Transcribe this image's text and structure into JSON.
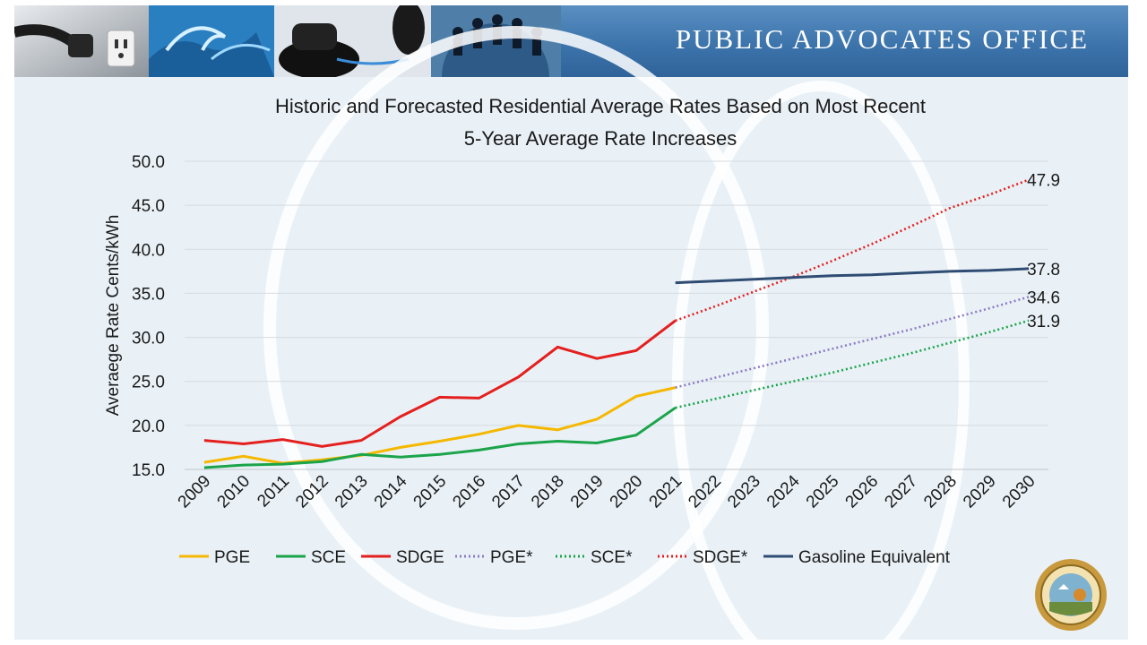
{
  "header": {
    "title": "PUBLIC ADVOCATES OFFICE",
    "photos": [
      "plug-outlet-icon",
      "water-wave-icon",
      "telephone-icon",
      "globe-people-icon"
    ]
  },
  "chart_data": {
    "type": "line",
    "title_lines": [
      "Historic and Forecasted Residential Average Rates Based on Most Recent",
      "5-Year Average Rate Increases"
    ],
    "ylabel": "Averaege Rate Cents/kWh",
    "xlabel": "",
    "ylim": [
      15,
      50
    ],
    "yticks": [
      "15.0",
      "20.0",
      "25.0",
      "30.0",
      "35.0",
      "40.0",
      "45.0",
      "50.0"
    ],
    "x": [
      "2009",
      "2010",
      "2011",
      "2012",
      "2013",
      "2014",
      "2015",
      "2016",
      "2017",
      "2018",
      "2019",
      "2020",
      "2021",
      "2022",
      "2023",
      "2024",
      "2025",
      "2026",
      "2027",
      "2028",
      "2029",
      "2030"
    ],
    "grid": true,
    "legend_position": "bottom",
    "series": [
      {
        "name": "PGE",
        "color": "#f5b800",
        "style": "solid",
        "values": [
          15.8,
          16.5,
          15.7,
          16.1,
          16.6,
          17.5,
          18.2,
          19.0,
          20.0,
          19.5,
          20.7,
          23.3,
          24.3,
          null,
          null,
          null,
          null,
          null,
          null,
          null,
          null,
          null
        ]
      },
      {
        "name": "SCE",
        "color": "#1ba44a",
        "style": "solid",
        "values": [
          15.2,
          15.5,
          15.6,
          15.9,
          16.7,
          16.4,
          16.7,
          17.2,
          17.9,
          18.2,
          18.0,
          18.9,
          22.0,
          null,
          null,
          null,
          null,
          null,
          null,
          null,
          null,
          null
        ]
      },
      {
        "name": "SDGE",
        "color": "#e4201f",
        "style": "solid",
        "values": [
          18.3,
          17.9,
          18.4,
          17.6,
          18.3,
          21.0,
          23.2,
          23.1,
          25.5,
          28.9,
          27.6,
          28.5,
          31.9,
          null,
          null,
          null,
          null,
          null,
          null,
          null,
          null,
          null
        ]
      },
      {
        "name": "PGE*",
        "color": "#8e7cc3",
        "style": "dotted",
        "values": [
          null,
          null,
          null,
          null,
          null,
          null,
          null,
          null,
          null,
          null,
          null,
          null,
          24.3,
          25.4,
          26.5,
          27.6,
          28.7,
          29.8,
          30.9,
          32.1,
          33.3,
          34.6
        ],
        "end_label": "34.6"
      },
      {
        "name": "SCE*",
        "color": "#1ba44a",
        "style": "dotted",
        "values": [
          null,
          null,
          null,
          null,
          null,
          null,
          null,
          null,
          null,
          null,
          null,
          null,
          22.0,
          23.0,
          24.0,
          25.0,
          26.0,
          27.1,
          28.2,
          29.4,
          30.6,
          31.9
        ],
        "end_label": "31.9"
      },
      {
        "name": "SDGE*",
        "color": "#e4201f",
        "style": "dotted",
        "values": [
          null,
          null,
          null,
          null,
          null,
          null,
          null,
          null,
          null,
          null,
          null,
          null,
          31.9,
          33.5,
          35.2,
          36.9,
          38.7,
          40.6,
          42.6,
          44.7,
          46.2,
          47.9
        ],
        "end_label": "47.9"
      },
      {
        "name": "Gasoline Equivalent",
        "color": "#2f4c73",
        "style": "solid",
        "values": [
          null,
          null,
          null,
          null,
          null,
          null,
          null,
          null,
          null,
          null,
          null,
          null,
          36.2,
          36.4,
          36.6,
          36.8,
          37.0,
          37.1,
          37.3,
          37.5,
          37.6,
          37.8
        ],
        "end_label": "37.8"
      }
    ]
  }
}
